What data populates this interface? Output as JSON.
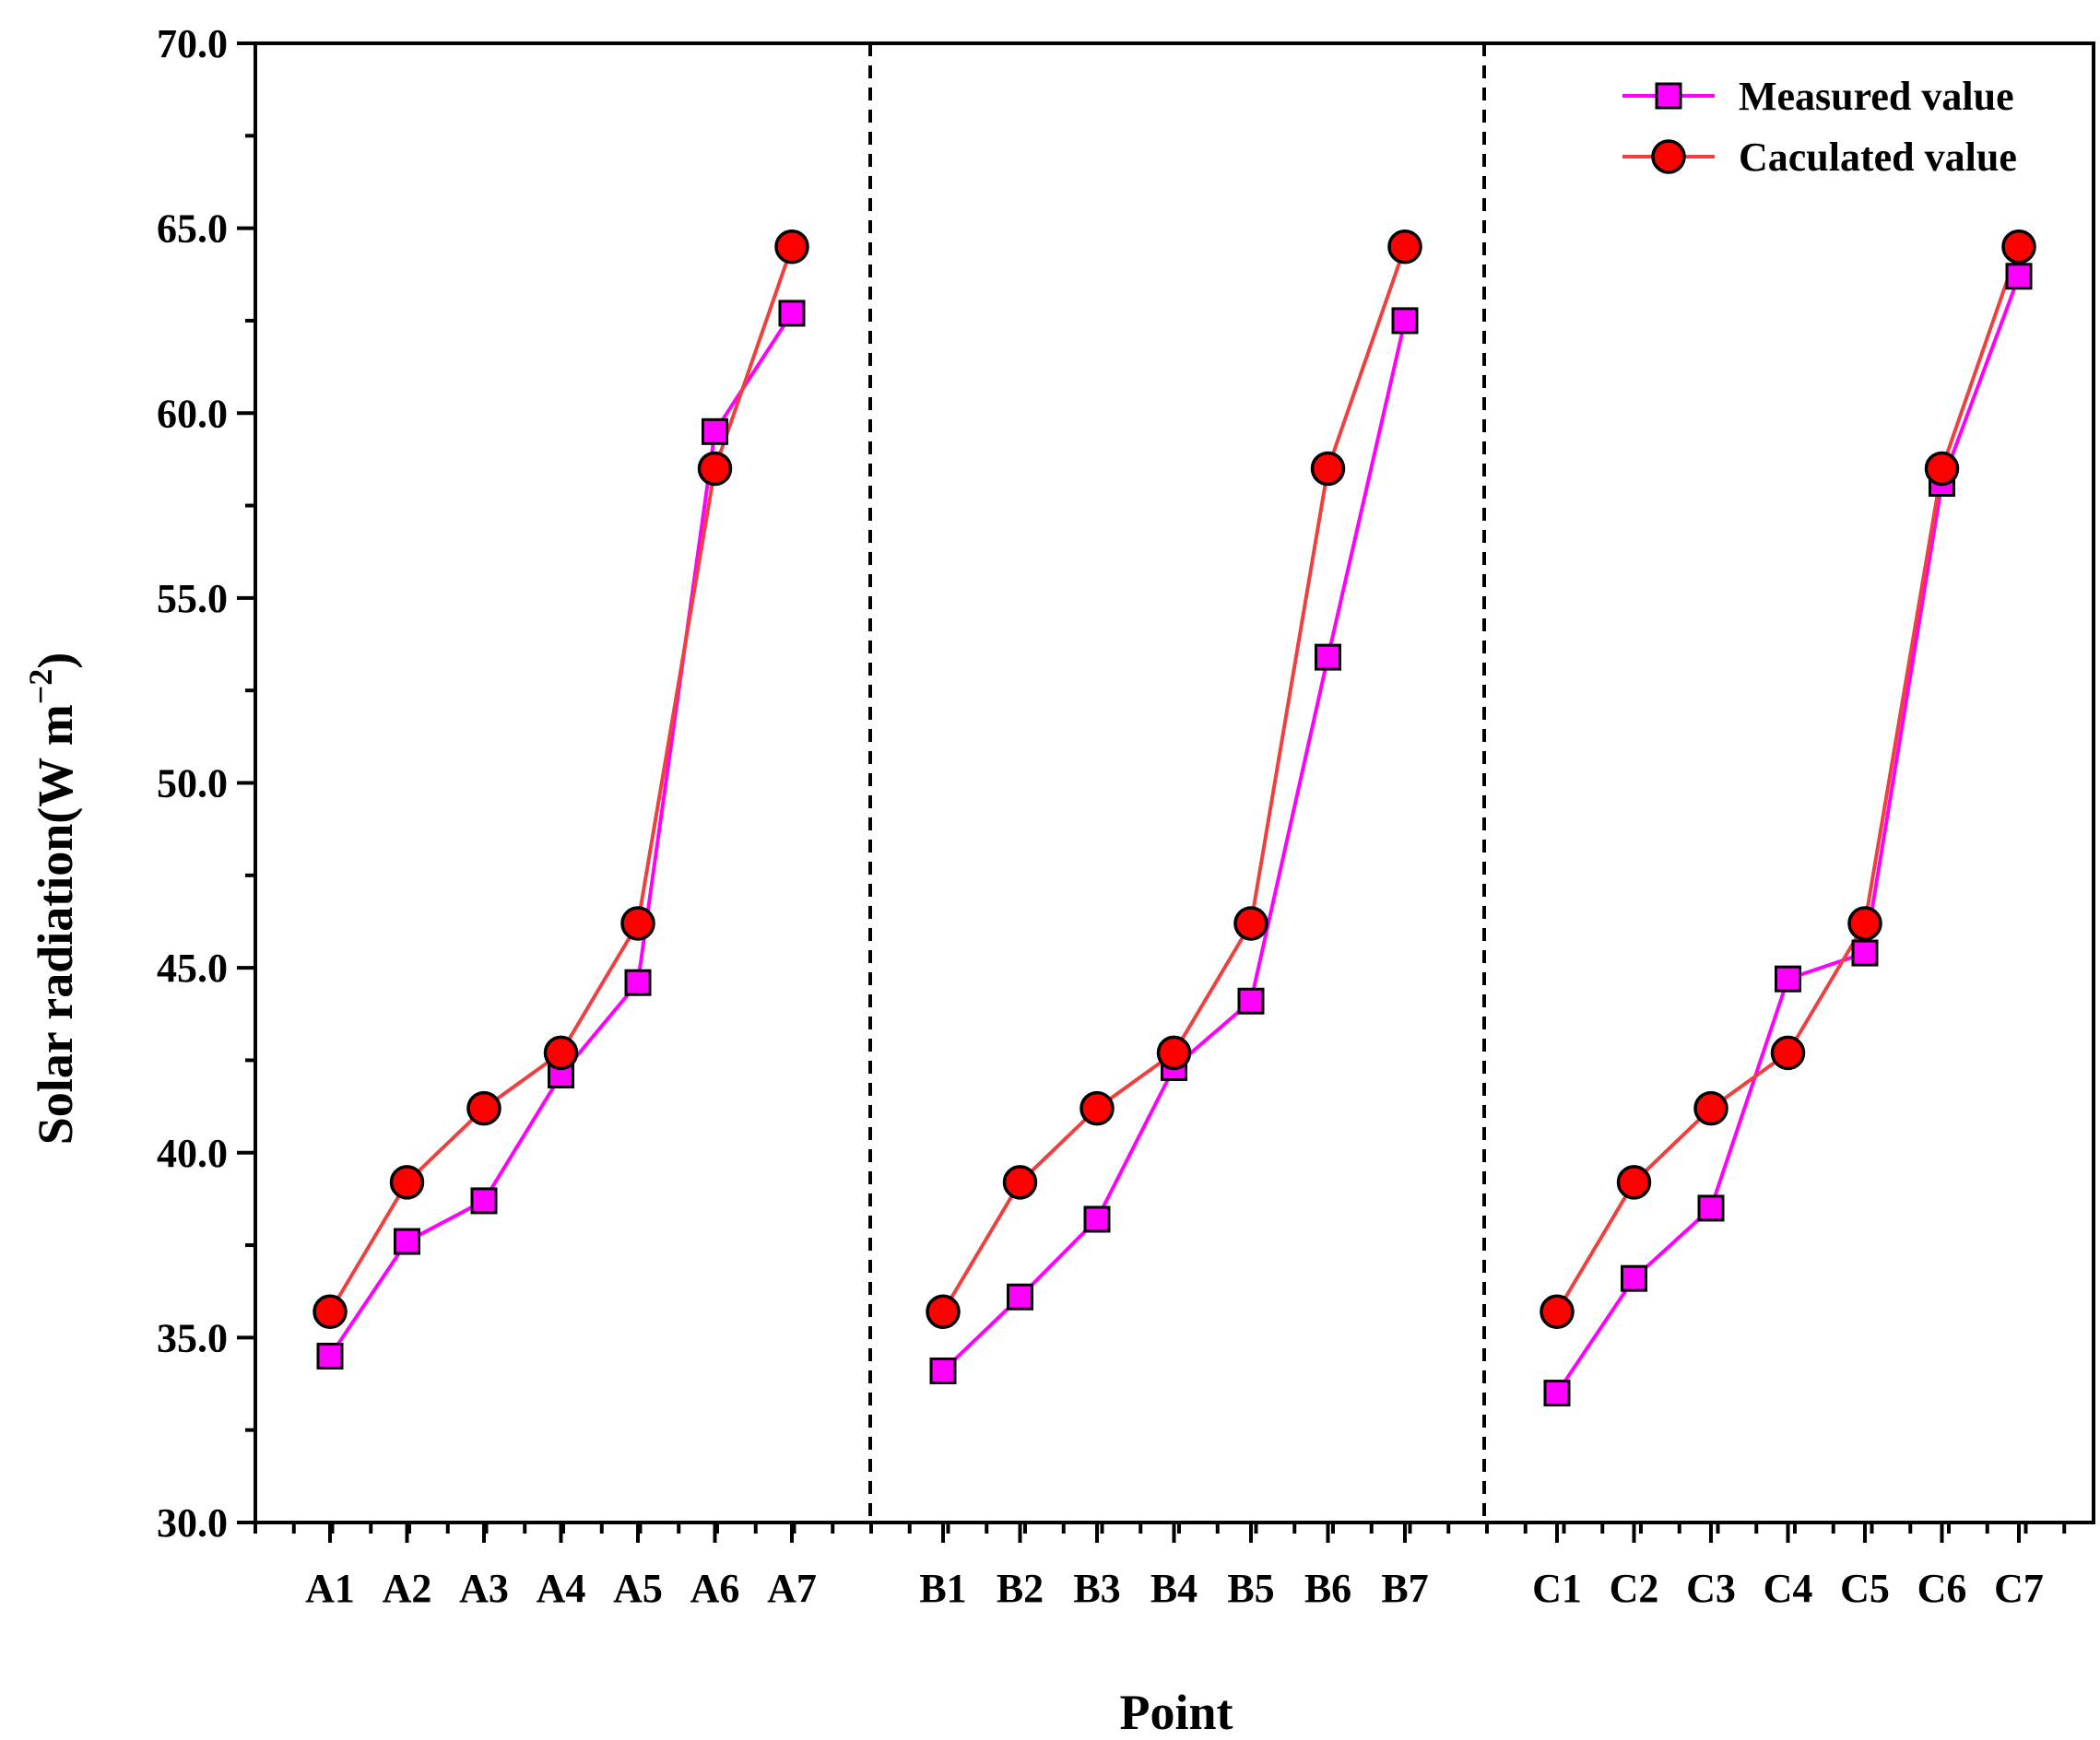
{
  "chart_data": {
    "type": "line",
    "title": "",
    "xlabel": "Point",
    "ylabel_main": "Solar radiation(W m",
    "ylabel_sup": "−2",
    "ylabel_close": ")",
    "ylim": [
      30.0,
      70.0
    ],
    "yticks": [
      "30.0",
      "35.0",
      "40.0",
      "45.0",
      "50.0",
      "55.0",
      "60.0",
      "65.0",
      "70.0"
    ],
    "grid": false,
    "legend_position": "top-right",
    "groups": [
      {
        "name": "A",
        "categories": [
          "A1",
          "A2",
          "A3",
          "A4",
          "A5",
          "A6",
          "A7"
        ]
      },
      {
        "name": "B",
        "categories": [
          "B1",
          "B2",
          "B3",
          "B4",
          "B5",
          "B6",
          "B7"
        ]
      },
      {
        "name": "C",
        "categories": [
          "C1",
          "C2",
          "C3",
          "C4",
          "C5",
          "C6",
          "C7"
        ]
      }
    ],
    "series": [
      {
        "name": "Measured value",
        "marker": "square",
        "color": "#ff00ff",
        "values": [
          [
            34.5,
            37.6,
            38.7,
            42.1,
            44.6,
            59.5,
            62.7
          ],
          [
            34.1,
            36.1,
            38.2,
            42.3,
            44.1,
            53.4,
            62.5
          ],
          [
            33.5,
            36.6,
            38.5,
            44.7,
            45.4,
            58.1,
            63.7
          ]
        ]
      },
      {
        "name": "Caculated value",
        "marker": "circle",
        "color": "#ff0000",
        "line_color": "#ef4040",
        "values": [
          [
            35.7,
            39.2,
            41.2,
            42.7,
            46.2,
            58.5,
            64.5
          ],
          [
            35.7,
            39.2,
            41.2,
            42.7,
            46.2,
            58.5,
            64.5
          ],
          [
            35.7,
            39.2,
            41.2,
            42.7,
            46.2,
            58.5,
            64.5
          ]
        ]
      }
    ],
    "separators_after_groups": [
      "A",
      "B"
    ]
  }
}
